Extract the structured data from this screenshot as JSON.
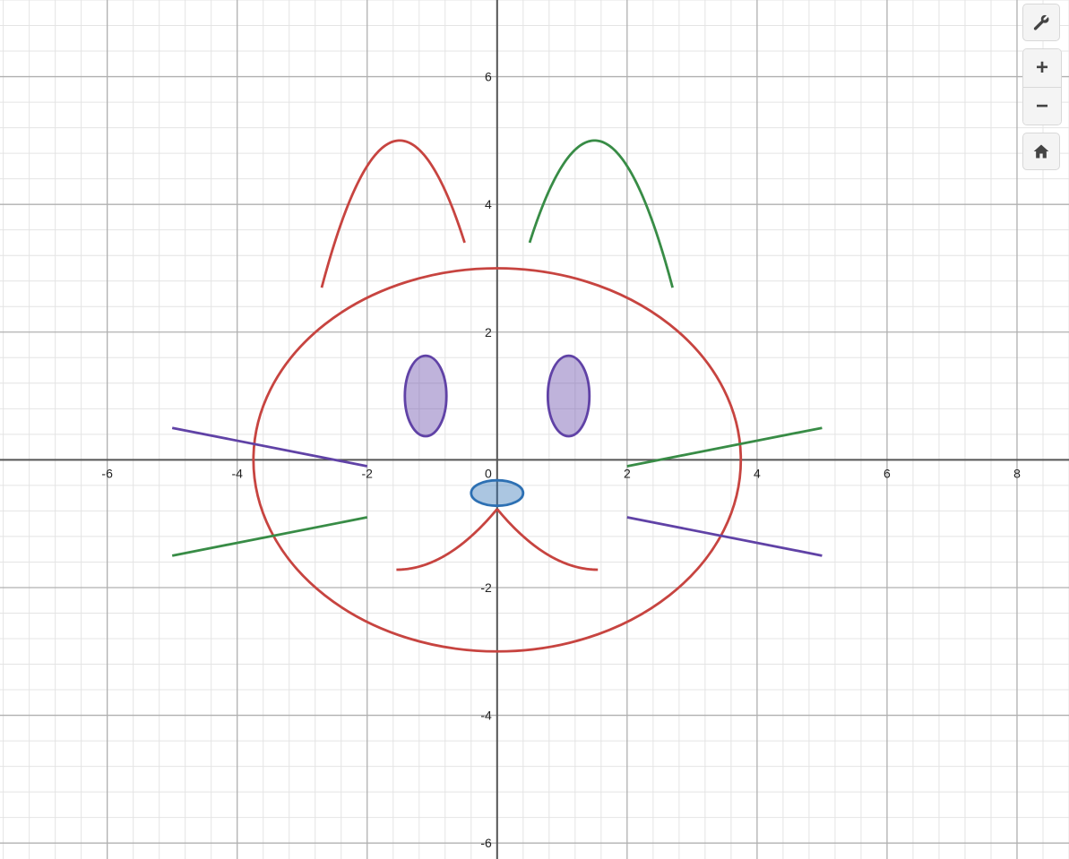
{
  "graph": {
    "x_ticks": [
      "-6",
      "-4",
      "-2",
      "0",
      "2",
      "4",
      "6",
      "8"
    ],
    "y_ticks": [
      "6",
      "4",
      "2",
      "-2",
      "-4",
      "-6"
    ],
    "colors": {
      "red": "#c74440",
      "green": "#388c46",
      "purple": "#6042a6",
      "blue": "#2d70b3",
      "axis": "#555555",
      "major_grid": "#b0b0b0",
      "minor_grid": "#e4e4e4"
    },
    "view": {
      "xmin": -7.65,
      "xmax": 8.8,
      "ymin": -6.25,
      "ymax": 7.2
    },
    "curves": [
      {
        "name": "head",
        "type": "ellipse",
        "cx": 0,
        "cy": 0,
        "rx": 3.75,
        "ry": 3,
        "color": "red",
        "fill": false
      },
      {
        "name": "left-ear",
        "type": "parabola",
        "vx": -1.5,
        "vy": 5,
        "k": 1.6,
        "from": -2.7,
        "to": -0.5,
        "color": "red"
      },
      {
        "name": "right-ear",
        "type": "parabola",
        "vx": 1.5,
        "vy": 5,
        "k": 1.6,
        "from": 0.5,
        "to": 2.7,
        "color": "green"
      },
      {
        "name": "left-eye",
        "type": "ellipse",
        "cx": -1.1,
        "cy": 1,
        "rx": 0.32,
        "ry": 0.63,
        "color": "purple",
        "fill": true
      },
      {
        "name": "right-eye",
        "type": "ellipse",
        "cx": 1.1,
        "cy": 1,
        "rx": 0.32,
        "ry": 0.63,
        "color": "purple",
        "fill": true
      },
      {
        "name": "nose",
        "type": "ellipse",
        "cx": 0,
        "cy": -0.52,
        "rx": 0.4,
        "ry": 0.2,
        "color": "blue",
        "fill": true
      },
      {
        "name": "left-mouth",
        "type": "mouth",
        "side": -1,
        "from": 0,
        "to": 1.55,
        "color": "red"
      },
      {
        "name": "right-mouth",
        "type": "mouth",
        "side": 1,
        "from": 0,
        "to": 1.55,
        "color": "red"
      },
      {
        "name": "whisker-upper-left",
        "type": "segment",
        "x1": -5,
        "y1": 0.5,
        "x2": -2,
        "y2": -0.1,
        "color": "purple"
      },
      {
        "name": "whisker-lower-left",
        "type": "segment",
        "x1": -5,
        "y1": -1.5,
        "x2": -2,
        "y2": -0.9,
        "color": "green"
      },
      {
        "name": "whisker-upper-right",
        "type": "segment",
        "x1": 2,
        "y1": -0.1,
        "x2": 5,
        "y2": 0.5,
        "color": "green"
      },
      {
        "name": "whisker-lower-right",
        "type": "segment",
        "x1": 2,
        "y1": -0.9,
        "x2": 5,
        "y2": -1.5,
        "color": "purple"
      }
    ]
  },
  "toolbar": {
    "settings_icon": "wrench-icon",
    "zoom_in_label": "+",
    "zoom_out_label": "−",
    "home_icon": "home-icon"
  }
}
